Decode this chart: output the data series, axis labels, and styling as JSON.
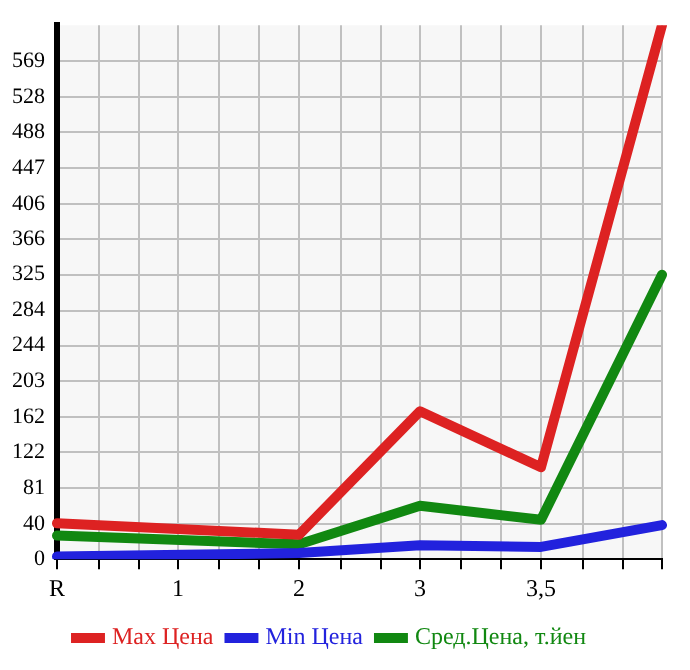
{
  "chart_data": {
    "type": "line",
    "categories": [
      "R",
      "1",
      "2",
      "3",
      "3,5",
      null
    ],
    "series": [
      {
        "name": "Max Цена",
        "color": "#dd2222",
        "values": [
          41,
          null,
          28,
          169,
          105,
          610
        ]
      },
      {
        "name": "Min Цена",
        "color": "#2222dd",
        "values": [
          3,
          null,
          7,
          16,
          14,
          39
        ]
      },
      {
        "name": "Сред.Цена, т.йен",
        "color": "#118811",
        "values": [
          27,
          null,
          17,
          61,
          45,
          325
        ]
      }
    ],
    "ylim": [
      0,
      610
    ],
    "yticks": [
      0,
      40,
      81,
      122,
      162,
      203,
      244,
      284,
      325,
      366,
      406,
      447,
      488,
      528,
      569
    ],
    "grid": true,
    "legend": "bottom",
    "marker": "none",
    "line_style": "solid"
  }
}
